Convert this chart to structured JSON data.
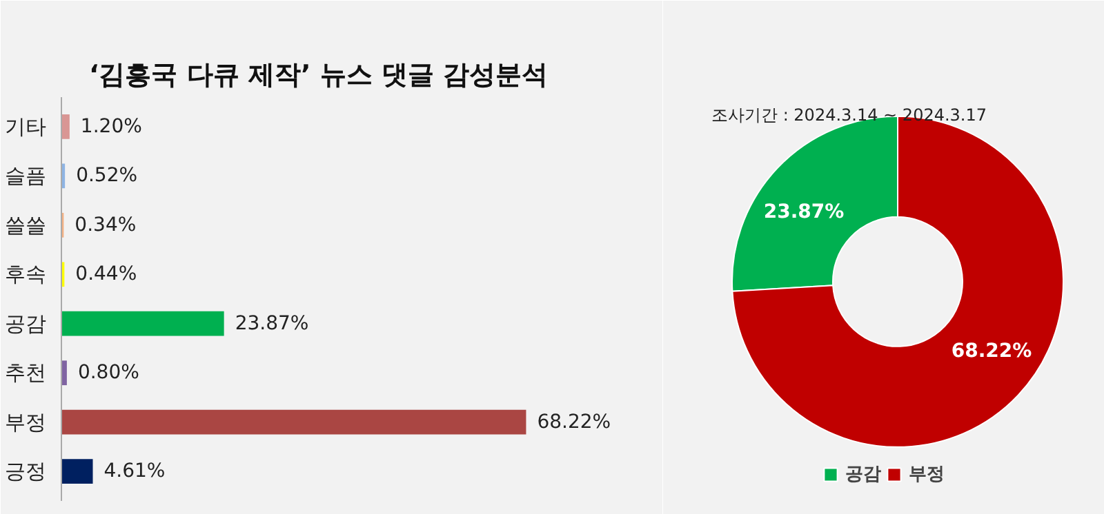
{
  "chart_data": [
    {
      "type": "bar",
      "orientation": "horizontal",
      "title": "‘김흥국 다큐 제작’ 뉴스 댓글 감성분석",
      "categories": [
        "기타",
        "슬픔",
        "쓸쓸",
        "후속",
        "공감",
        "추천",
        "부정",
        "긍정"
      ],
      "values": [
        1.2,
        0.52,
        0.34,
        0.44,
        23.87,
        0.8,
        68.22,
        4.61
      ],
      "value_labels": [
        "1.20%",
        "0.52%",
        "0.34%",
        "0.44%",
        "23.87%",
        "0.80%",
        "68.22%",
        "4.61%"
      ],
      "colors": [
        "#d99694",
        "#8eb4e3",
        "#f4b183",
        "#ffff00",
        "#00b050",
        "#8064a2",
        "#aa4643",
        "#002060"
      ]
    },
    {
      "type": "donut",
      "annotations": [
        "조사기간 : 2024.3.14 ~ 2024.3.17"
      ],
      "categories": [
        "공감",
        "부정"
      ],
      "values": [
        23.87,
        68.22
      ],
      "value_labels": [
        "23.87%",
        "68.22%"
      ],
      "colors": [
        "#00b050",
        "#c00000"
      ],
      "legend": "bottom"
    }
  ]
}
